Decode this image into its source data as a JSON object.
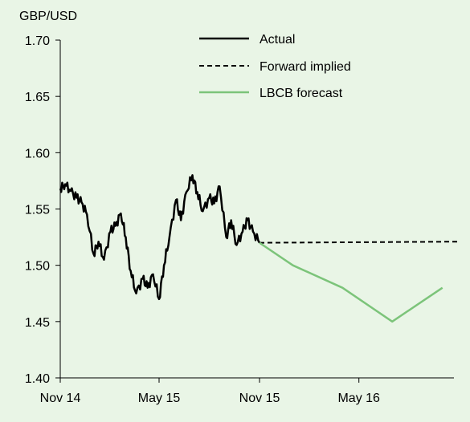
{
  "chart_data": {
    "type": "line",
    "ylabel": "GBP/USD",
    "ylim": [
      1.4,
      1.7
    ],
    "yticks": [
      "1.70",
      "1.65",
      "1.60",
      "1.55",
      "1.50",
      "1.45",
      "1.40"
    ],
    "ytick_values": [
      1.7,
      1.65,
      1.6,
      1.55,
      1.5,
      1.45,
      1.4
    ],
    "xticks": [
      "Nov 14",
      "May 15",
      "Nov 15",
      "May 16"
    ],
    "xtick_months": [
      "2014-11",
      "2015-05",
      "2015-11",
      "2016-05"
    ],
    "xlim": [
      "2014-11",
      "2016-12"
    ],
    "grid": false,
    "legend_position": "top-right",
    "colors": {
      "actual": "#000000",
      "forward": "#000000",
      "forecast": "#7cc47a",
      "background": "#e9f5e6"
    },
    "series": [
      {
        "name": "Actual",
        "style": "solid",
        "x": [
          "2014-11-01",
          "2014-11-10",
          "2014-11-20",
          "2014-12-01",
          "2014-12-10",
          "2014-12-20",
          "2015-01-01",
          "2015-01-10",
          "2015-01-20",
          "2015-02-01",
          "2015-02-10",
          "2015-02-20",
          "2015-03-01",
          "2015-03-10",
          "2015-03-20",
          "2015-04-01",
          "2015-04-10",
          "2015-04-20",
          "2015-05-01",
          "2015-05-10",
          "2015-05-20",
          "2015-06-01",
          "2015-06-10",
          "2015-06-20",
          "2015-07-01",
          "2015-07-10",
          "2015-07-20",
          "2015-08-01",
          "2015-08-10",
          "2015-08-20",
          "2015-09-01",
          "2015-09-10",
          "2015-09-20",
          "2015-10-01",
          "2015-10-10",
          "2015-10-20",
          "2015-11-01"
        ],
        "values": [
          1.568,
          1.572,
          1.566,
          1.56,
          1.556,
          1.545,
          1.51,
          1.521,
          1.505,
          1.53,
          1.535,
          1.546,
          1.525,
          1.495,
          1.475,
          1.488,
          1.48,
          1.492,
          1.47,
          1.5,
          1.525,
          1.558,
          1.54,
          1.565,
          1.58,
          1.565,
          1.548,
          1.56,
          1.555,
          1.57,
          1.525,
          1.54,
          1.518,
          1.53,
          1.54,
          1.53,
          1.52
        ]
      },
      {
        "name": "Forward implied",
        "style": "dashed",
        "x": [
          "2015-11-01",
          "2016-11-01"
        ],
        "values": [
          1.52,
          1.521
        ]
      },
      {
        "name": "LBCB forecast",
        "style": "solid",
        "x": [
          "2015-11-01",
          "2016-01-01",
          "2016-04-01",
          "2016-07-01",
          "2016-10-01"
        ],
        "values": [
          1.52,
          1.5,
          1.48,
          1.45,
          1.48
        ]
      }
    ]
  }
}
